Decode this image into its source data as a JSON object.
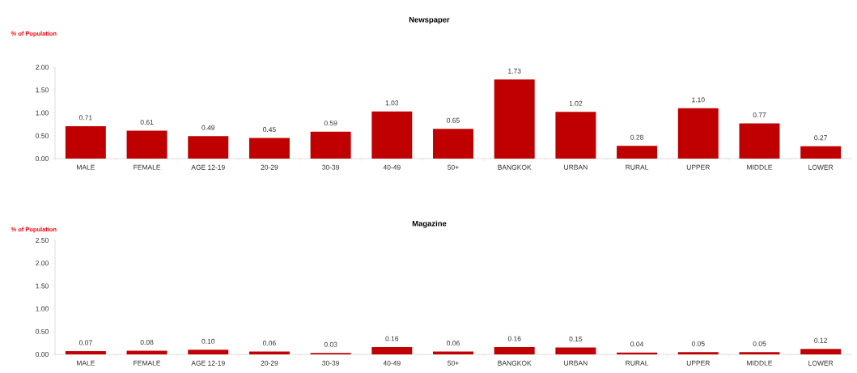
{
  "chart_data": [
    {
      "type": "bar",
      "title": "Newspaper",
      "ylabel": "% of Population",
      "categories": [
        "MALE",
        "FEMALE",
        "AGE 12-19",
        "20-29",
        "30-39",
        "40-49",
        "50+",
        "BANGKOK",
        "URBAN",
        "RURAL",
        "UPPER",
        "MIDDLE",
        "LOWER"
      ],
      "values": [
        0.71,
        0.61,
        0.49,
        0.45,
        0.59,
        1.03,
        0.65,
        1.73,
        1.02,
        0.28,
        1.1,
        0.77,
        0.27
      ],
      "value_labels": [
        "0.71",
        "0.61",
        "0.49",
        "0.45",
        "0.59",
        "1.03",
        "0.65",
        "1.73",
        "1.02",
        "0.28",
        "1.10",
        "0.77",
        "0.27"
      ],
      "color": "#c00000",
      "ylim": [
        0,
        2
      ],
      "yticks": [
        {
          "value": 0,
          "label": "0.00"
        },
        {
          "value": 0.5,
          "label": "0.50"
        },
        {
          "value": 1,
          "label": "1.00"
        },
        {
          "value": 1.5,
          "label": "1.50"
        },
        {
          "value": 2,
          "label": "2.00"
        }
      ]
    },
    {
      "type": "bar",
      "title": "Magazine",
      "ylabel": "% of Population",
      "categories": [
        "MALE",
        "FEMALE",
        "AGE 12-19",
        "20-29",
        "30-39",
        "40-49",
        "50+",
        "BANGKOK",
        "URBAN",
        "RURAL",
        "UPPER",
        "MIDDLE",
        "LOWER"
      ],
      "values": [
        0.07,
        0.08,
        0.1,
        0.06,
        0.03,
        0.16,
        0.06,
        0.16,
        0.15,
        0.04,
        0.05,
        0.05,
        0.12
      ],
      "value_labels": [
        "0.07",
        "0.08",
        "0.10",
        "0.06",
        "0.03",
        "0.16",
        "0.06",
        "0.16",
        "0.15",
        "0.04",
        "0.05",
        "0.05",
        "0.12"
      ],
      "color": "#c00000",
      "ylim": [
        0,
        2.5
      ],
      "yticks": [
        {
          "value": 0,
          "label": "0.00"
        },
        {
          "value": 0.5,
          "label": "0.50"
        },
        {
          "value": 1,
          "label": "1.00"
        },
        {
          "value": 1.5,
          "label": "1.50"
        },
        {
          "value": 2,
          "label": "2.00"
        },
        {
          "value": 2.5,
          "label": "2.50"
        }
      ]
    }
  ]
}
